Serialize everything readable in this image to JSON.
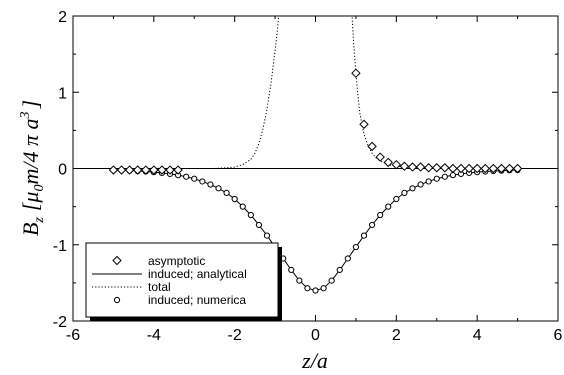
{
  "chart_data": {
    "type": "line",
    "title": "",
    "xlabel": "z/a",
    "ylabel": "B_z [μ_0 m/4 π a^3]",
    "ylabel_parts": {
      "b": "B",
      "z": "z",
      "open": "[",
      "mu": "μ",
      "zero": "0",
      "m4pia": "m/4 π a",
      "three": "3",
      "close": "]"
    },
    "xlim": [
      -6,
      6
    ],
    "ylim": [
      -2,
      2
    ],
    "xticks": [
      -6,
      -4,
      -2,
      0,
      2,
      4,
      6
    ],
    "yticks": [
      -2,
      -1,
      0,
      1,
      2
    ],
    "x_tick_labels": [
      "-6",
      "-4",
      "-2",
      "0",
      "2",
      "4",
      "6"
    ],
    "y_tick_labels": [
      "-2",
      "-1",
      "0",
      "1",
      "2"
    ],
    "grid": false,
    "zero_line": true,
    "legend_position": "bottom-left",
    "legend": [
      {
        "label": "asymptotic",
        "style": "diamond-marker"
      },
      {
        "label": "induced; analytical",
        "style": "solid-line"
      },
      {
        "label": "total",
        "style": "dotted-line"
      },
      {
        "label": "induced; numerica",
        "style": "circle-marker"
      }
    ],
    "series": [
      {
        "name": "asymptotic",
        "style": "diamond-marker",
        "x": [
          -5.0,
          -4.8,
          -4.6,
          -4.4,
          -4.2,
          -4.0,
          -3.8,
          -3.6,
          -3.4,
          1.0,
          1.2,
          1.4,
          1.6,
          1.8,
          2.0,
          2.2,
          2.4,
          2.6,
          2.8,
          3.0,
          3.2,
          3.4,
          3.6,
          3.8,
          4.0,
          4.2,
          4.4,
          4.6,
          4.8,
          5.0
        ],
        "y": [
          -0.02,
          -0.02,
          -0.02,
          -0.02,
          -0.02,
          -0.02,
          -0.02,
          -0.02,
          -0.02,
          1.25,
          0.58,
          0.29,
          0.15,
          0.08,
          0.05,
          0.03,
          0.02,
          0.02,
          0.01,
          0.01,
          0.01,
          0.0,
          0.0,
          0.0,
          0.0,
          0.0,
          0.0,
          0.0,
          0.0,
          0.0
        ]
      },
      {
        "name": "induced; analytical",
        "style": "solid-line",
        "x": [
          -5.0,
          -4.8,
          -4.6,
          -4.4,
          -4.2,
          -4.0,
          -3.8,
          -3.6,
          -3.4,
          -3.2,
          -3.0,
          -2.8,
          -2.6,
          -2.4,
          -2.2,
          -2.0,
          -1.8,
          -1.6,
          -1.4,
          -1.2,
          -1.0,
          -0.8,
          -0.6,
          -0.4,
          -0.2,
          0.0,
          0.2,
          0.4,
          0.6,
          0.8,
          1.0,
          1.2,
          1.4,
          1.6,
          1.8,
          2.0,
          2.2,
          2.4,
          2.6,
          2.8,
          3.0,
          3.2,
          3.4,
          3.6,
          3.8,
          4.0,
          4.2,
          4.4,
          4.6,
          4.8,
          5.0
        ],
        "y": [
          -0.02,
          -0.023,
          -0.028,
          -0.033,
          -0.04,
          -0.048,
          -0.058,
          -0.071,
          -0.087,
          -0.108,
          -0.134,
          -0.17,
          -0.21,
          -0.26,
          -0.32,
          -0.4,
          -0.5,
          -0.61,
          -0.74,
          -0.88,
          -1.03,
          -1.18,
          -1.33,
          -1.47,
          -1.57,
          -1.6,
          -1.57,
          -1.47,
          -1.33,
          -1.18,
          -1.03,
          -0.88,
          -0.74,
          -0.61,
          -0.5,
          -0.4,
          -0.32,
          -0.26,
          -0.21,
          -0.17,
          -0.134,
          -0.108,
          -0.087,
          -0.071,
          -0.058,
          -0.048,
          -0.04,
          -0.033,
          -0.028,
          -0.023,
          -0.02
        ]
      },
      {
        "name": "total",
        "style": "dotted-line",
        "x": [
          -2.5,
          -2.2,
          -2.0,
          -1.8,
          -1.6,
          -1.5,
          -1.4,
          -1.3,
          -1.2,
          -1.1,
          -1.0,
          -0.95,
          -0.9,
          -0.86,
          0.86,
          0.88,
          0.9,
          0.92,
          0.95,
          1.0,
          1.05,
          1.1,
          1.2,
          1.3,
          1.4,
          1.5,
          1.6,
          1.8,
          2.0,
          2.2,
          2.5,
          3.0,
          3.5,
          4.0,
          4.5,
          5.0
        ],
        "y": [
          0.0,
          0.01,
          0.02,
          0.05,
          0.12,
          0.2,
          0.33,
          0.52,
          0.78,
          1.12,
          1.55,
          1.78,
          2.05,
          2.4,
          2.4,
          2.2,
          2.05,
          1.85,
          1.6,
          1.25,
          0.95,
          0.72,
          0.45,
          0.3,
          0.2,
          0.14,
          0.1,
          0.05,
          0.03,
          0.02,
          0.01,
          0.0,
          0.0,
          0.0,
          0.0,
          0.0
        ]
      },
      {
        "name": "induced; numerica",
        "style": "circle-marker",
        "x": [
          -5.0,
          -4.8,
          -4.6,
          -4.4,
          -4.2,
          -4.0,
          -3.8,
          -3.6,
          -3.4,
          -3.2,
          -3.0,
          -2.8,
          -2.6,
          -2.4,
          -2.2,
          -2.0,
          -1.8,
          -1.6,
          -1.4,
          -1.2,
          -1.0,
          -0.8,
          -0.6,
          -0.4,
          -0.2,
          0.0,
          0.2,
          0.4,
          0.6,
          0.8,
          1.0,
          1.2,
          1.4,
          1.6,
          1.8,
          2.0,
          2.2,
          2.4,
          2.6,
          2.8,
          3.0,
          3.2,
          3.4,
          3.6,
          3.8,
          4.0,
          4.2,
          4.4,
          4.6,
          4.8,
          5.0
        ],
        "y": [
          -0.02,
          -0.023,
          -0.028,
          -0.033,
          -0.04,
          -0.048,
          -0.058,
          -0.071,
          -0.087,
          -0.108,
          -0.134,
          -0.17,
          -0.21,
          -0.26,
          -0.32,
          -0.4,
          -0.5,
          -0.61,
          -0.74,
          -0.88,
          -1.03,
          -1.18,
          -1.33,
          -1.47,
          -1.57,
          -1.6,
          -1.57,
          -1.47,
          -1.33,
          -1.18,
          -1.03,
          -0.88,
          -0.74,
          -0.61,
          -0.5,
          -0.4,
          -0.32,
          -0.26,
          -0.21,
          -0.17,
          -0.134,
          -0.108,
          -0.087,
          -0.071,
          -0.058,
          -0.048,
          -0.04,
          -0.033,
          -0.028,
          -0.023,
          -0.02
        ]
      }
    ]
  }
}
